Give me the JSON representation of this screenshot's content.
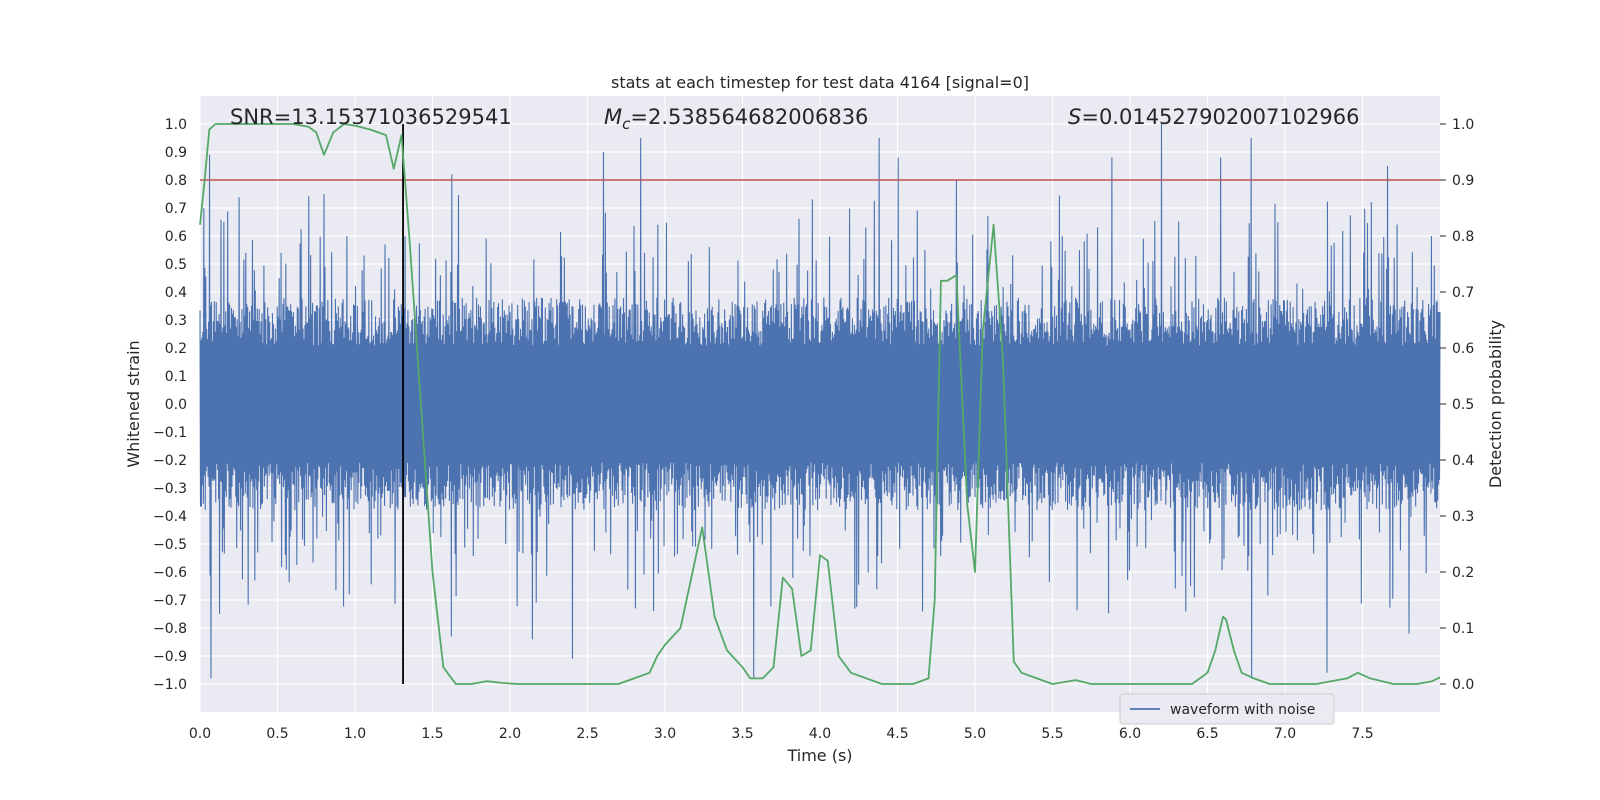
{
  "chart_data": {
    "type": "line",
    "title": "stats at each timestep for test data 4164 [signal=0]",
    "xlabel": "Time (s)",
    "ylabel": "Whitened strain",
    "ylabel_right": "Detection probability",
    "xlim": [
      0.0,
      8.0
    ],
    "ylim": [
      -1.1,
      1.1
    ],
    "ylim_right": [
      -0.05,
      1.05
    ],
    "x_ticks": [
      0.0,
      0.5,
      1.0,
      1.5,
      2.0,
      2.5,
      3.0,
      3.5,
      4.0,
      4.5,
      5.0,
      5.5,
      6.0,
      6.5,
      7.0,
      7.5
    ],
    "x_tick_labels": [
      "0.0",
      "0.5",
      "1.0",
      "1.5",
      "2.0",
      "2.5",
      "3.0",
      "3.5",
      "4.0",
      "4.5",
      "5.0",
      "5.5",
      "6.0",
      "6.5",
      "7.0",
      "7.5"
    ],
    "y_ticks": [
      1.0,
      0.9,
      0.8,
      0.7,
      0.6,
      0.5,
      0.4,
      0.3,
      0.2,
      0.1,
      0.0,
      -0.1,
      -0.2,
      -0.3,
      -0.4,
      -0.5,
      -0.6,
      -0.7,
      -0.8,
      -0.9,
      -1.0
    ],
    "y_tick_labels": [
      "1.0",
      "0.9",
      "0.8",
      "0.7",
      "0.6",
      "0.5",
      "0.4",
      "0.3",
      "0.2",
      "0.1",
      "0.0",
      "−0.1",
      "−0.2",
      "−0.3",
      "−0.4",
      "−0.5",
      "−0.6",
      "−0.7",
      "−0.8",
      "−0.9",
      "−1.0"
    ],
    "y_right_ticks": [
      1.0,
      0.9,
      0.8,
      0.7,
      0.6,
      0.5,
      0.4,
      0.3,
      0.2,
      0.1,
      0.0
    ],
    "y_right_tick_labels": [
      "1.0",
      "0.9",
      "0.8",
      "0.7",
      "0.6",
      "0.5",
      "0.4",
      "0.3",
      "0.2",
      "0.1",
      "0.0"
    ],
    "annotations": {
      "snr_text": "SNR=13.15371036529541",
      "mc_symbol": "M",
      "mc_sub": "c",
      "mc_value": "=2.538564682006836",
      "s_symbol": "S",
      "s_value": "=0.014527902007102966"
    },
    "threshold": {
      "value": 0.8,
      "axis": "left",
      "color": "#c44e52"
    },
    "vertical_marker": {
      "x": 1.31,
      "y_range": [
        -1.0,
        1.0
      ],
      "color": "#000000"
    },
    "legend": {
      "entries": [
        "waveform with noise"
      ],
      "location": "lower-right"
    },
    "series": [
      {
        "name": "waveform with noise",
        "axis": "left",
        "color": "#4c72b0",
        "style": "dense-noise",
        "x_range": [
          0.0,
          8.0
        ],
        "core_amplitude": 0.38,
        "spikes": [
          {
            "x": 0.07,
            "value": -0.98
          },
          {
            "x": 0.06,
            "value": 0.89
          },
          {
            "x": 0.15,
            "value": 0.65
          },
          {
            "x": 0.35,
            "value": -0.63
          },
          {
            "x": 0.8,
            "value": 0.75
          },
          {
            "x": 1.62,
            "value": 0.82
          },
          {
            "x": 1.62,
            "value": -0.83
          },
          {
            "x": 2.14,
            "value": -0.84
          },
          {
            "x": 2.4,
            "value": -0.91
          },
          {
            "x": 2.6,
            "value": 0.9
          },
          {
            "x": 2.84,
            "value": 0.95
          },
          {
            "x": 3.57,
            "value": -0.98
          },
          {
            "x": 4.38,
            "value": 0.95
          },
          {
            "x": 4.5,
            "value": 0.88
          },
          {
            "x": 4.88,
            "value": 0.8
          },
          {
            "x": 5.88,
            "value": 0.88
          },
          {
            "x": 6.2,
            "value": 1.0
          },
          {
            "x": 6.58,
            "value": 0.88
          },
          {
            "x": 6.78,
            "value": 0.95
          },
          {
            "x": 6.78,
            "value": -0.98
          },
          {
            "x": 7.27,
            "value": -0.96
          },
          {
            "x": 7.66,
            "value": 0.85
          },
          {
            "x": 7.8,
            "value": -0.82
          },
          {
            "x": 7.94,
            "value": 0.6
          }
        ]
      },
      {
        "name": "Detection probability",
        "axis": "right",
        "color": "#55a868",
        "x": [
          0.0,
          0.03,
          0.06,
          0.1,
          0.13,
          0.2,
          0.3,
          0.4,
          0.5,
          0.6,
          0.7,
          0.75,
          0.8,
          0.86,
          0.93,
          1.0,
          1.1,
          1.2,
          1.25,
          1.3,
          1.35,
          1.4,
          1.5,
          1.57,
          1.65,
          1.75,
          1.85,
          1.95,
          2.05,
          2.2,
          2.4,
          2.6,
          2.7,
          2.8,
          2.9,
          2.95,
          3.0,
          3.1,
          3.24,
          3.32,
          3.4,
          3.5,
          3.55,
          3.63,
          3.7,
          3.76,
          3.82,
          3.88,
          3.94,
          4.0,
          4.05,
          4.12,
          4.2,
          4.4,
          4.6,
          4.7,
          4.74,
          4.78,
          4.82,
          4.88,
          4.95,
          5.0,
          5.05,
          5.12,
          5.18,
          5.25,
          5.3,
          5.4,
          5.5,
          5.65,
          5.75,
          5.9,
          6.0,
          6.2,
          6.4,
          6.5,
          6.55,
          6.6,
          6.62,
          6.67,
          6.72,
          6.8,
          6.9,
          7.0,
          7.2,
          7.4,
          7.47,
          7.55,
          7.7,
          7.85,
          7.95,
          8.0
        ],
        "y": [
          0.82,
          0.9,
          0.99,
          1.0,
          1.0,
          1.0,
          1.0,
          1.0,
          1.0,
          1.0,
          0.995,
          0.985,
          0.945,
          0.985,
          1.0,
          0.997,
          0.99,
          0.98,
          0.92,
          0.98,
          0.8,
          0.6,
          0.2,
          0.03,
          0.0,
          0.0,
          0.005,
          0.002,
          0.0,
          0.0,
          0.0,
          0.0,
          0.0,
          0.01,
          0.02,
          0.05,
          0.07,
          0.1,
          0.28,
          0.12,
          0.06,
          0.03,
          0.01,
          0.01,
          0.03,
          0.19,
          0.17,
          0.05,
          0.06,
          0.23,
          0.22,
          0.05,
          0.02,
          0.0,
          0.0,
          0.01,
          0.15,
          0.72,
          0.72,
          0.73,
          0.32,
          0.2,
          0.63,
          0.82,
          0.58,
          0.04,
          0.02,
          0.01,
          0.0,
          0.007,
          0.0,
          0.0,
          0.0,
          0.0,
          0.0,
          0.02,
          0.06,
          0.12,
          0.115,
          0.06,
          0.02,
          0.01,
          0.0,
          0.0,
          0.0,
          0.01,
          0.02,
          0.01,
          0.0,
          0.0,
          0.005,
          0.012
        ]
      }
    ]
  }
}
